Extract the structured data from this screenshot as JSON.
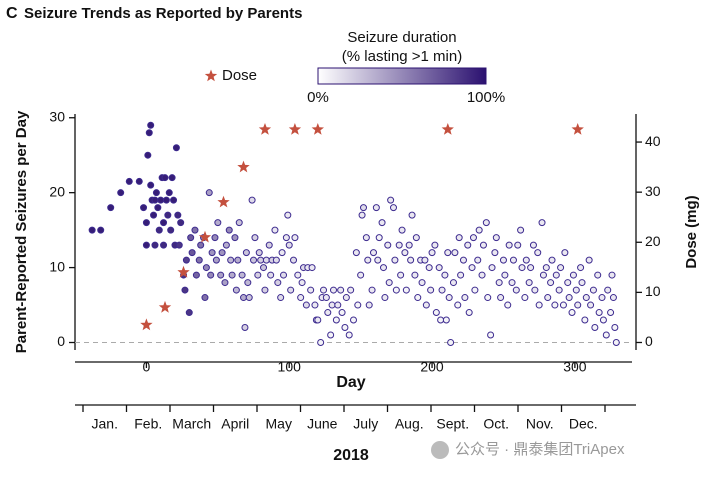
{
  "chart_data": {
    "type": "scatter",
    "panel": "C",
    "title": "Seizure Trends as Reported by Parents",
    "xlabel": "Day",
    "ylabel": "Parent-Reported Seizures per Day",
    "y2label": "Dose (mg)",
    "xlim": [
      -50,
      340
    ],
    "xticks": [
      0,
      100,
      200,
      300
    ],
    "ylim": [
      -1,
      30.5
    ],
    "yticks": [
      0,
      10,
      20,
      30
    ],
    "y2lim": [
      -1.5,
      45.6
    ],
    "y2ticks": [
      0,
      10,
      20,
      30,
      40
    ],
    "marker_edge_color": "#3d2b8f",
    "x": [
      -38,
      -32,
      -25,
      -18,
      -12,
      -5,
      -2,
      0,
      0,
      1,
      2,
      3,
      3,
      4,
      5,
      6,
      6,
      7,
      8,
      9,
      10,
      11,
      12,
      12,
      13,
      14,
      15,
      16,
      17,
      18,
      19,
      20,
      21,
      22,
      23,
      24,
      26,
      27,
      28,
      30,
      31,
      32,
      34,
      35,
      37,
      38,
      40,
      41,
      42,
      44,
      45,
      46,
      48,
      49,
      50,
      52,
      53,
      55,
      56,
      58,
      59,
      60,
      62,
      63,
      64,
      65,
      67,
      68,
      69,
      70,
      71,
      72,
      74,
      75,
      76,
      78,
      79,
      80,
      82,
      83,
      84,
      86,
      87,
      88,
      90,
      91,
      92,
      94,
      95,
      96,
      98,
      99,
      100,
      101,
      103,
      104,
      106,
      108,
      109,
      110,
      112,
      113,
      115,
      116,
      118,
      119,
      120,
      122,
      123,
      124,
      126,
      127,
      129,
      130,
      131,
      133,
      134,
      136,
      137,
      139,
      140,
      142,
      143,
      145,
      147,
      148,
      150,
      151,
      152,
      154,
      155,
      156,
      158,
      159,
      161,
      162,
      163,
      165,
      166,
      167,
      169,
      170,
      171,
      173,
      174,
      175,
      177,
      178,
      179,
      181,
      182,
      184,
      185,
      186,
      188,
      189,
      190,
      192,
      193,
      195,
      196,
      198,
      199,
      200,
      202,
      203,
      205,
      206,
      207,
      209,
      210,
      211,
      212,
      213,
      215,
      216,
      218,
      219,
      220,
      222,
      223,
      225,
      226,
      228,
      229,
      230,
      232,
      233,
      235,
      236,
      238,
      239,
      241,
      242,
      244,
      245,
      247,
      248,
      250,
      251,
      253,
      254,
      256,
      257,
      259,
      260,
      262,
      263,
      265,
      266,
      268,
      269,
      271,
      272,
      274,
      275,
      277,
      278,
      280,
      281,
      283,
      284,
      286,
      287,
      289,
      290,
      292,
      293,
      295,
      296,
      298,
      299,
      301,
      302,
      304,
      305,
      307,
      308,
      310,
      311,
      313,
      314,
      316,
      317,
      319,
      320,
      322,
      323,
      325,
      326,
      327,
      328,
      329
    ],
    "values": [
      15,
      15,
      18,
      20,
      21.5,
      21.5,
      18,
      13,
      16,
      25,
      28,
      29,
      21,
      19,
      17,
      19,
      13,
      20,
      18,
      15,
      19,
      22,
      16,
      13,
      22,
      19,
      17,
      20,
      15,
      22,
      19,
      13,
      26,
      17,
      13,
      16,
      9,
      7,
      11,
      4,
      14,
      12,
      15,
      9,
      11,
      13,
      14,
      6,
      10,
      20,
      9,
      12,
      14,
      11,
      16,
      9,
      12,
      8,
      13,
      15,
      11,
      9,
      14,
      7,
      11,
      16,
      9,
      6,
      2,
      12,
      8,
      6,
      19,
      11,
      14,
      9,
      12,
      11,
      10,
      7,
      11,
      13,
      9,
      11,
      15,
      11,
      8,
      6,
      12,
      9,
      14,
      17,
      13,
      7,
      11,
      14,
      9,
      6,
      8,
      10,
      5,
      10,
      7,
      10,
      5,
      3,
      3,
      0,
      6,
      7,
      6,
      4,
      1,
      5,
      7,
      3,
      5,
      7,
      4,
      2,
      6,
      1,
      7,
      3,
      12,
      5,
      9,
      17,
      18,
      14,
      11,
      5,
      7,
      12,
      18,
      11,
      14,
      16,
      10,
      6,
      13,
      8,
      19,
      18,
      11,
      7,
      13,
      9,
      15,
      12,
      7,
      13,
      11,
      17,
      9,
      14,
      6,
      11,
      8,
      11,
      5,
      10,
      7,
      12,
      13,
      4,
      10,
      3,
      7,
      9,
      3,
      12,
      6,
      0,
      8,
      12,
      5,
      14,
      9,
      11,
      6,
      13,
      4,
      10,
      14,
      7,
      11,
      15,
      9,
      13,
      16,
      6,
      1,
      10,
      12,
      14,
      8,
      6,
      11,
      9,
      5,
      13,
      8,
      11,
      7,
      13,
      15,
      10,
      6,
      11,
      8,
      10,
      13,
      7,
      12,
      5,
      16,
      9,
      10,
      6,
      8,
      11,
      5,
      9,
      7,
      10,
      5,
      12,
      8,
      6,
      4,
      9,
      7,
      5,
      10,
      8,
      3,
      6,
      11,
      5,
      7,
      2,
      9,
      4,
      6,
      3,
      1,
      7,
      4,
      9,
      6,
      2,
      0
    ],
    "duration": [
      95,
      95,
      95,
      95,
      95,
      95,
      95,
      95,
      95,
      95,
      95,
      95,
      95,
      95,
      95,
      95,
      90,
      95,
      95,
      90,
      95,
      95,
      95,
      90,
      95,
      95,
      90,
      95,
      90,
      95,
      95,
      90,
      95,
      90,
      85,
      90,
      85,
      85,
      80,
      85,
      70,
      70,
      60,
      65,
      60,
      60,
      55,
      60,
      50,
      40,
      50,
      45,
      50,
      40,
      35,
      40,
      45,
      40,
      35,
      50,
      30,
      35,
      45,
      30,
      35,
      25,
      30,
      35,
      20,
      25,
      30,
      25,
      15,
      25,
      20,
      20,
      20,
      20,
      25,
      20,
      15,
      20,
      15,
      20,
      10,
      15,
      20,
      15,
      10,
      15,
      10,
      10,
      15,
      15,
      15,
      10,
      10,
      10,
      10,
      15,
      15,
      10,
      10,
      10,
      10,
      10,
      10,
      5,
      10,
      10,
      10,
      10,
      5,
      10,
      10,
      5,
      10,
      10,
      5,
      5,
      10,
      5,
      10,
      5,
      10,
      5,
      10,
      10,
      15,
      10,
      10,
      10,
      10,
      10,
      10,
      10,
      5,
      10,
      10,
      10,
      10,
      10,
      10,
      10,
      10,
      5,
      10,
      10,
      10,
      10,
      5,
      10,
      10,
      10,
      10,
      10,
      5,
      10,
      10,
      10,
      10,
      10,
      10,
      10,
      10,
      5,
      10,
      5,
      10,
      10,
      5,
      10,
      10,
      5,
      10,
      10,
      5,
      10,
      10,
      10,
      10,
      10,
      5,
      10,
      10,
      5,
      10,
      10,
      10,
      10,
      10,
      5,
      5,
      10,
      10,
      10,
      10,
      10,
      10,
      10,
      5,
      10,
      10,
      10,
      10,
      10,
      10,
      10,
      5,
      10,
      10,
      10,
      10,
      10,
      10,
      5,
      10,
      10,
      10,
      10,
      10,
      10,
      5,
      10,
      10,
      10,
      5,
      10,
      10,
      10,
      5,
      10,
      10,
      10,
      10,
      10,
      5,
      10,
      10,
      10,
      10,
      5,
      10,
      5,
      10,
      5,
      5,
      10,
      5,
      10,
      10,
      5,
      5
    ],
    "dose": {
      "name": "Dose",
      "axis": "y2",
      "color": "#c4503e",
      "x": [
        0,
        13,
        26,
        41,
        54,
        68,
        83,
        104,
        120,
        211,
        302
      ],
      "values": [
        3.5,
        7,
        14,
        21,
        28,
        35,
        42.5,
        42.5,
        42.5,
        42.5,
        42.5
      ]
    },
    "colorbar": {
      "title": [
        "Seizure duration",
        "(% lasting >1 min)"
      ],
      "colors": [
        "#ffffff",
        "#2b1170"
      ],
      "ticks": [
        {
          "value": 0,
          "label": "0%"
        },
        {
          "value": 100,
          "label": "100%"
        }
      ]
    },
    "months": [
      "Jan.",
      "Feb.",
      "March",
      "April",
      "May",
      "June",
      "July",
      "Aug.",
      "Sept.",
      "Oct.",
      "Nov.",
      "Dec."
    ],
    "year": "2018",
    "watermark": "公众号 · 鼎泰集团TriApex"
  }
}
